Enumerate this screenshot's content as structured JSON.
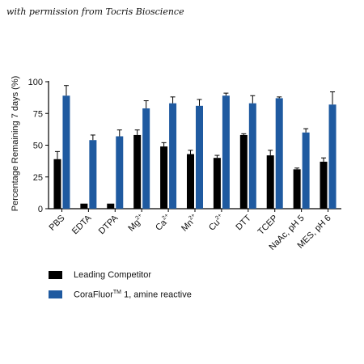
{
  "credit": "with permission from Tocris Bioscience",
  "chart_data": {
    "type": "bar",
    "ylabel": "Percentage Remaining 7 days (%)",
    "ylim": [
      0,
      100
    ],
    "yticks": [
      0,
      25,
      50,
      75,
      100
    ],
    "categories": [
      "PBS",
      "EDTA",
      "DTPA",
      "Mg",
      "Ca",
      "Mn",
      "Cu",
      "DTT",
      "TCEP",
      "NaAc, pH 5",
      "MES, pH 6"
    ],
    "category_superscripts": [
      "",
      "",
      "",
      "2+",
      "2+",
      "2+",
      "2+",
      "",
      "",
      "",
      ""
    ],
    "series": [
      {
        "name": "Leading Competitor",
        "color": "#000000",
        "values": [
          39,
          4,
          4,
          58,
          49,
          43,
          40,
          58,
          42,
          31,
          37
        ],
        "errors": [
          6,
          0,
          0,
          4,
          3,
          3,
          2,
          1,
          4,
          1,
          3
        ]
      },
      {
        "name": "CoraFluor 1, amine reactive",
        "name_main": "CoraFluor",
        "name_superscript": "TM",
        "name_rest": " 1, amine reactive",
        "color": "#1f5aa0",
        "values": [
          89,
          54,
          57,
          79,
          83,
          81,
          89,
          83,
          87,
          60,
          82
        ],
        "errors": [
          8,
          4,
          5,
          6,
          5,
          5,
          2,
          6,
          1,
          3,
          10
        ]
      }
    ]
  }
}
